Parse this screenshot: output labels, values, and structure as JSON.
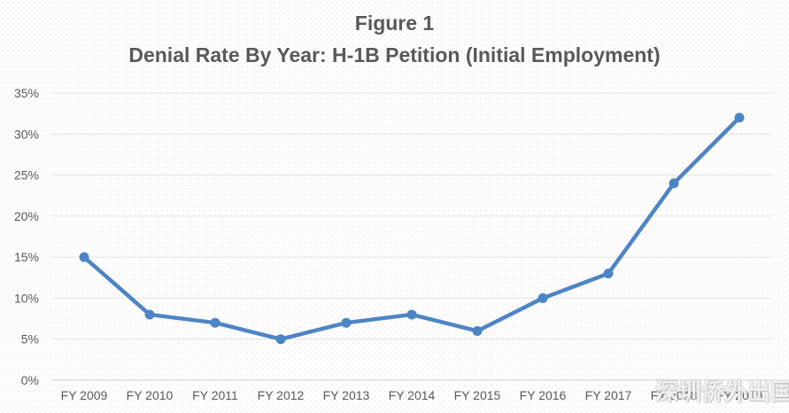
{
  "title": {
    "line1": "Figure 1",
    "line2": "Denial Rate By Year: H-1B Petition (Initial Employment)"
  },
  "watermark": "深圳侨外出国",
  "colors": {
    "line": "#4d85c4",
    "grid": "#e2e2e2",
    "axis": "#cfcfcf",
    "tick_text": "#595959",
    "title_text": "#595959"
  },
  "chart_data": {
    "type": "line",
    "title": "Figure 1 — Denial Rate By Year: H-1B Petition (Initial Employment)",
    "categories": [
      "FY 2009",
      "FY 2010",
      "FY 2011",
      "FY 2012",
      "FY 2013",
      "FY 2014",
      "FY 2015",
      "FY 2016",
      "FY 2017",
      "FY 2018",
      "FY 2019"
    ],
    "series": [
      {
        "name": "Denial Rate",
        "values": [
          15,
          8,
          7,
          5,
          7,
          8,
          6,
          10,
          13,
          24,
          32
        ]
      }
    ],
    "xlabel": "",
    "ylabel": "",
    "ylim": [
      0,
      35
    ],
    "ytick_step": 5,
    "ytick_suffix": "%",
    "grid": true,
    "legend": false,
    "marker": "circle"
  }
}
